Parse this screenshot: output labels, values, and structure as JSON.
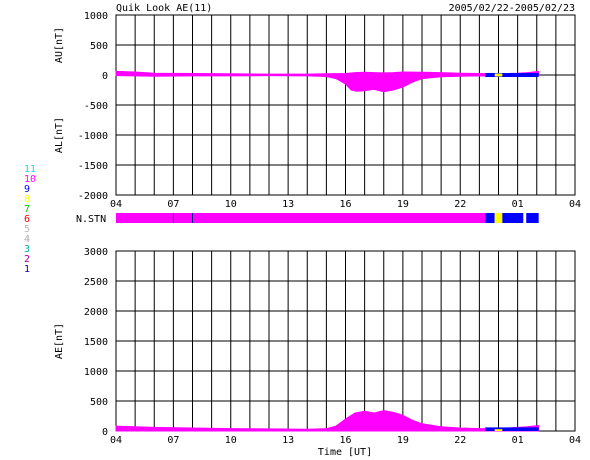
{
  "header": {
    "title": "Quik Look AE(11)",
    "date_range": "2005/02/22-2005/02/23"
  },
  "colors": {
    "signal": "#ff00ff",
    "grid": "#000000",
    "station_blue": "#0000ff",
    "station_yellow": "#ffff00",
    "station_magenta": "#ff00ff",
    "station_darkblue": "#0000cc"
  },
  "station_legend": [
    {
      "label": "11",
      "color": "#00e5e5"
    },
    {
      "label": "10",
      "color": "#ff00ff"
    },
    {
      "label": "9",
      "color": "#0000ff"
    },
    {
      "label": "8",
      "color": "#ffff00"
    },
    {
      "label": "7",
      "color": "#00cc00"
    },
    {
      "label": "6",
      "color": "#ff0000"
    },
    {
      "label": "5",
      "color": "#bbbbbb"
    },
    {
      "label": "4",
      "color": "#aaaaaa"
    },
    {
      "label": "3",
      "color": "#00aaaa"
    },
    {
      "label": "2",
      "color": "#aa00aa"
    },
    {
      "label": "1",
      "color": "#0000aa"
    }
  ],
  "x_ticks": [
    "04",
    "07",
    "10",
    "13",
    "16",
    "19",
    "22",
    "01",
    "04"
  ],
  "top_ylabel_au": "AU[nT]",
  "top_ylabel_al": "AL[nT]",
  "nstn_label": "N.STN",
  "bottom_ylabel": "AE[nT]",
  "xlabel": "Time [UT]",
  "chart_data": [
    {
      "type": "area",
      "name": "AU/AL",
      "xlim": [
        4,
        28
      ],
      "ylim": [
        -2000,
        1000
      ],
      "yticks": [
        1000,
        500,
        0,
        -500,
        -1000,
        -1500,
        -2000
      ],
      "au": {
        "x": [
          4,
          5,
          6,
          8,
          10,
          12,
          14,
          15,
          16,
          16.5,
          17,
          17.5,
          18,
          18.5,
          19,
          20,
          21,
          22,
          23,
          23.5,
          24,
          25,
          25.5,
          26.1
        ],
        "y": [
          60,
          50,
          30,
          25,
          20,
          15,
          15,
          20,
          25,
          40,
          45,
          40,
          35,
          40,
          50,
          45,
          40,
          30,
          25,
          20,
          20,
          30,
          40,
          60
        ]
      },
      "al": {
        "x": [
          4,
          5,
          6,
          8,
          10,
          12,
          14,
          15,
          15.5,
          16,
          16.3,
          16.6,
          17,
          17.5,
          18,
          18.5,
          19,
          19.5,
          20,
          21,
          22,
          23,
          24,
          25,
          26.1
        ],
        "y": [
          -10,
          -15,
          -20,
          -15,
          -15,
          -10,
          -15,
          -25,
          -60,
          -150,
          -250,
          -270,
          -260,
          -240,
          -280,
          -250,
          -200,
          -120,
          -60,
          -30,
          -20,
          -15,
          -20,
          -15,
          -10
        ]
      }
    },
    {
      "type": "area",
      "name": "AE",
      "xlim": [
        4,
        28
      ],
      "ylim": [
        0,
        3000
      ],
      "yticks": [
        3000,
        2500,
        2000,
        1500,
        1000,
        500,
        0
      ],
      "x": [
        4,
        5,
        6,
        8,
        10,
        12,
        14,
        15,
        15.5,
        16,
        16.5,
        17,
        17.5,
        18,
        18.5,
        19,
        19.5,
        20,
        21,
        22,
        23,
        24,
        25,
        25.5,
        26.1
      ],
      "y": [
        80,
        70,
        60,
        50,
        40,
        35,
        30,
        40,
        80,
        200,
        300,
        330,
        300,
        340,
        310,
        260,
        180,
        120,
        70,
        50,
        40,
        40,
        60,
        70,
        90
      ]
    }
  ],
  "nstn_segments": [
    {
      "start": 4,
      "end": 23.3,
      "color": "#ff00ff"
    },
    {
      "start": 23.3,
      "end": 23.8,
      "color": "#0000ff"
    },
    {
      "start": 23.8,
      "end": 24.2,
      "color": "#ffff00"
    },
    {
      "start": 24.2,
      "end": 25.3,
      "color": "#0000ff"
    },
    {
      "start": 25.3,
      "end": 25.45,
      "color": "#ffffff"
    },
    {
      "start": 25.45,
      "end": 26.1,
      "color": "#0000ff"
    }
  ]
}
